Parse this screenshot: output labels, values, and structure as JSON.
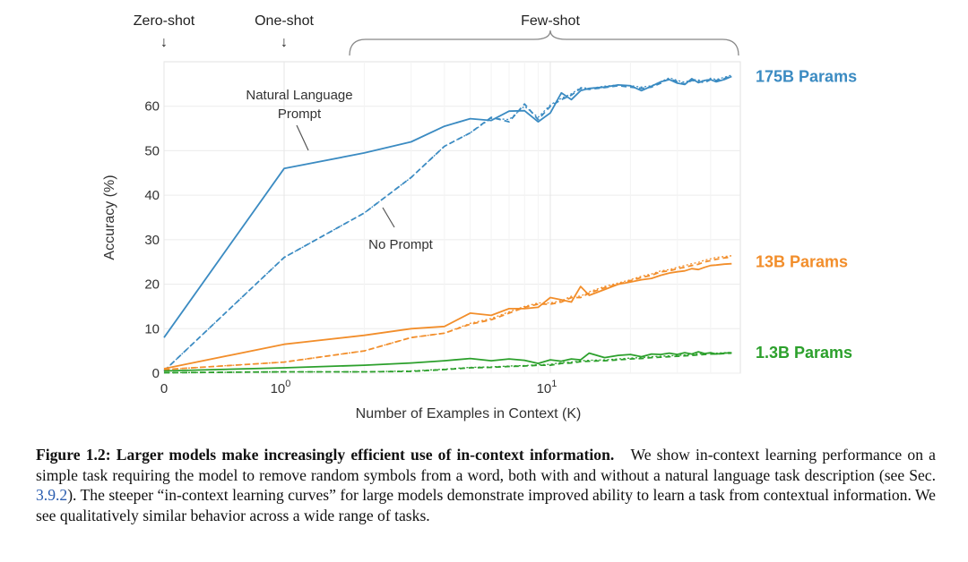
{
  "figure": {
    "shot_labels": {
      "zero_shot": "Zero-shot",
      "one_shot": "One-shot",
      "few_shot": "Few-shot"
    },
    "arrow_glyph": "↓",
    "annotations": {
      "nl_prompt_line1": "Natural Language",
      "nl_prompt_line2": "Prompt",
      "no_prompt": "No Prompt"
    }
  },
  "chart_data": {
    "type": "line",
    "xlabel": "Number of Examples in Context  (K)",
    "ylabel": "Accuracy (%)",
    "x_scale": "symlog",
    "ylim": [
      0,
      70
    ],
    "y_ticks": [
      0,
      10,
      20,
      30,
      40,
      50,
      60
    ],
    "x_ticks": [
      {
        "value": 0,
        "label": "0"
      },
      {
        "value": 1,
        "label": "10",
        "exponent": "0"
      },
      {
        "value": 10,
        "label": "10",
        "exponent": "1"
      }
    ],
    "grid": true,
    "series": [
      {
        "name": "175B Params",
        "prompt": "Natural Language Prompt",
        "style": "solid",
        "color": "#3b8bc2",
        "points": [
          [
            0,
            8
          ],
          [
            1,
            46
          ],
          [
            2,
            49.5
          ],
          [
            3,
            52
          ],
          [
            4,
            55.5
          ],
          [
            5,
            57.2
          ],
          [
            6,
            56.8
          ],
          [
            7,
            58.9
          ],
          [
            8,
            59
          ],
          [
            9,
            56.5
          ],
          [
            10,
            58.5
          ],
          [
            11,
            63
          ],
          [
            12,
            61.5
          ],
          [
            13,
            63.5
          ],
          [
            14,
            64
          ],
          [
            16,
            64.3
          ],
          [
            18,
            64.8
          ],
          [
            20,
            64.6
          ],
          [
            22,
            63.5
          ],
          [
            24,
            64.5
          ],
          [
            26,
            65.5
          ],
          [
            28,
            66
          ],
          [
            30,
            65.2
          ],
          [
            32,
            64.9
          ],
          [
            34,
            66.2
          ],
          [
            36,
            65.3
          ],
          [
            38,
            65.8
          ],
          [
            40,
            66
          ],
          [
            42,
            65.5
          ],
          [
            45,
            66
          ],
          [
            48,
            66.7
          ]
        ]
      },
      {
        "name": "175B Params",
        "prompt": "No Prompt",
        "style": "dashed",
        "color": "#3b8bc2",
        "points": [
          [
            0,
            0.5
          ],
          [
            1,
            26
          ],
          [
            2,
            36
          ],
          [
            3,
            44
          ],
          [
            4,
            51
          ],
          [
            5,
            54
          ],
          [
            6,
            57.5
          ],
          [
            7,
            56.5
          ],
          [
            8,
            60.5
          ],
          [
            9,
            57
          ],
          [
            10,
            60
          ],
          [
            11,
            61.5
          ],
          [
            12,
            62.5
          ],
          [
            13,
            64
          ],
          [
            14,
            63.8
          ],
          [
            16,
            64.2
          ],
          [
            18,
            64.6
          ],
          [
            20,
            64.3
          ],
          [
            22,
            64
          ],
          [
            24,
            64.3
          ],
          [
            26,
            65.2
          ],
          [
            28,
            66.2
          ],
          [
            30,
            65.5
          ],
          [
            32,
            65
          ],
          [
            34,
            65.8
          ],
          [
            36,
            65.6
          ],
          [
            38,
            65.3
          ],
          [
            40,
            66
          ],
          [
            42,
            65.8
          ],
          [
            45,
            66.2
          ],
          [
            48,
            66.8
          ]
        ]
      },
      {
        "name": "175B Params",
        "prompt": "No Prompt (alt)",
        "style": "dotted",
        "color": "#3b8bc2",
        "points": [
          [
            0,
            0.5
          ],
          [
            1,
            26
          ],
          [
            2,
            36
          ],
          [
            3,
            44
          ],
          [
            4,
            51
          ],
          [
            5,
            54
          ],
          [
            6,
            57.3
          ],
          [
            7,
            57
          ],
          [
            8,
            60
          ],
          [
            9,
            57.5
          ],
          [
            10,
            60.3
          ],
          [
            11,
            61.8
          ],
          [
            12,
            62.8
          ],
          [
            13,
            64.2
          ],
          [
            14,
            64
          ],
          [
            16,
            64.5
          ],
          [
            18,
            64.8
          ],
          [
            20,
            64.6
          ],
          [
            22,
            64.3
          ],
          [
            24,
            64.6
          ],
          [
            26,
            65.5
          ],
          [
            28,
            66.4
          ],
          [
            30,
            65.8
          ],
          [
            32,
            65.4
          ],
          [
            34,
            66
          ],
          [
            36,
            65.9
          ],
          [
            38,
            65.7
          ],
          [
            40,
            66.3
          ],
          [
            42,
            66
          ],
          [
            45,
            66.5
          ],
          [
            48,
            67
          ]
        ]
      },
      {
        "name": "13B Params",
        "prompt": "Natural Language Prompt",
        "style": "solid",
        "color": "#f28e2b",
        "points": [
          [
            0,
            1
          ],
          [
            1,
            6.5
          ],
          [
            2,
            8.5
          ],
          [
            3,
            10
          ],
          [
            4,
            10.5
          ],
          [
            5,
            13.5
          ],
          [
            6,
            13
          ],
          [
            7,
            14.5
          ],
          [
            8,
            14.5
          ],
          [
            9,
            14.8
          ],
          [
            10,
            17
          ],
          [
            11,
            16.5
          ],
          [
            12,
            16
          ],
          [
            13,
            19.5
          ],
          [
            14,
            17.5
          ],
          [
            16,
            18.8
          ],
          [
            18,
            20
          ],
          [
            20,
            20.5
          ],
          [
            22,
            21
          ],
          [
            24,
            21.3
          ],
          [
            26,
            22
          ],
          [
            28,
            22.5
          ],
          [
            30,
            22.8
          ],
          [
            32,
            23
          ],
          [
            34,
            23.5
          ],
          [
            36,
            23.3
          ],
          [
            38,
            23.8
          ],
          [
            40,
            24.2
          ],
          [
            42,
            24.3
          ],
          [
            45,
            24.5
          ],
          [
            48,
            24.6
          ]
        ]
      },
      {
        "name": "13B Params",
        "prompt": "No Prompt",
        "style": "dashed",
        "color": "#f28e2b",
        "points": [
          [
            0,
            0.8
          ],
          [
            1,
            2.5
          ],
          [
            2,
            5
          ],
          [
            3,
            8
          ],
          [
            4,
            9
          ],
          [
            5,
            11
          ],
          [
            6,
            12
          ],
          [
            7,
            13.5
          ],
          [
            8,
            14.8
          ],
          [
            9,
            15.5
          ],
          [
            10,
            15.5
          ],
          [
            11,
            16
          ],
          [
            12,
            17
          ],
          [
            13,
            17
          ],
          [
            14,
            18
          ],
          [
            16,
            19.2
          ],
          [
            18,
            20
          ],
          [
            20,
            20.8
          ],
          [
            22,
            21.5
          ],
          [
            24,
            22
          ],
          [
            26,
            22.8
          ],
          [
            28,
            23
          ],
          [
            30,
            23.5
          ],
          [
            32,
            23.8
          ],
          [
            34,
            24.2
          ],
          [
            36,
            24.5
          ],
          [
            38,
            25
          ],
          [
            40,
            25.3
          ],
          [
            42,
            25.6
          ],
          [
            45,
            25.9
          ],
          [
            48,
            26.1
          ]
        ]
      },
      {
        "name": "13B Params",
        "prompt": "No Prompt (alt)",
        "style": "dotted",
        "color": "#f28e2b",
        "points": [
          [
            0,
            0.8
          ],
          [
            1,
            2.5
          ],
          [
            2,
            5
          ],
          [
            3,
            8
          ],
          [
            4,
            9
          ],
          [
            5,
            11.2
          ],
          [
            6,
            12.3
          ],
          [
            7,
            13.8
          ],
          [
            8,
            15
          ],
          [
            9,
            15.8
          ],
          [
            10,
            15.8
          ],
          [
            11,
            16.3
          ],
          [
            12,
            17.3
          ],
          [
            13,
            17.3
          ],
          [
            14,
            18.3
          ],
          [
            16,
            19.5
          ],
          [
            18,
            20.3
          ],
          [
            20,
            21
          ],
          [
            22,
            21.8
          ],
          [
            24,
            22.3
          ],
          [
            26,
            23
          ],
          [
            28,
            23.3
          ],
          [
            30,
            23.8
          ],
          [
            32,
            24.2
          ],
          [
            34,
            24.6
          ],
          [
            36,
            24.9
          ],
          [
            38,
            25.4
          ],
          [
            40,
            25.7
          ],
          [
            42,
            26
          ],
          [
            45,
            26.2
          ],
          [
            48,
            26.4
          ]
        ]
      },
      {
        "name": "1.3B Params",
        "prompt": "Natural Language Prompt",
        "style": "solid",
        "color": "#2ca02c",
        "points": [
          [
            0,
            0.5
          ],
          [
            1,
            1.2
          ],
          [
            2,
            1.8
          ],
          [
            3,
            2.3
          ],
          [
            4,
            2.8
          ],
          [
            5,
            3.3
          ],
          [
            6,
            2.8
          ],
          [
            7,
            3.2
          ],
          [
            8,
            2.9
          ],
          [
            9,
            2.2
          ],
          [
            10,
            3
          ],
          [
            11,
            2.7
          ],
          [
            12,
            3.2
          ],
          [
            13,
            3
          ],
          [
            14,
            4.5
          ],
          [
            16,
            3.5
          ],
          [
            18,
            4
          ],
          [
            20,
            4.2
          ],
          [
            22,
            3.7
          ],
          [
            24,
            4.3
          ],
          [
            26,
            4.2
          ],
          [
            28,
            4.5
          ],
          [
            30,
            4.2
          ],
          [
            32,
            4.6
          ],
          [
            34,
            4.3
          ],
          [
            36,
            4.8
          ],
          [
            38,
            4.4
          ],
          [
            40,
            4.6
          ],
          [
            42,
            4.3
          ],
          [
            45,
            4.5
          ],
          [
            48,
            4.6
          ]
        ]
      },
      {
        "name": "1.3B Params",
        "prompt": "No Prompt",
        "style": "dashed",
        "color": "#2ca02c",
        "points": [
          [
            0,
            0.1
          ],
          [
            1,
            0.3
          ],
          [
            2,
            0.3
          ],
          [
            3,
            0.4
          ],
          [
            4,
            0.8
          ],
          [
            5,
            1.2
          ],
          [
            6,
            1.3
          ],
          [
            7,
            1.5
          ],
          [
            8,
            1.6
          ],
          [
            9,
            1.8
          ],
          [
            10,
            1.8
          ],
          [
            11,
            2.2
          ],
          [
            12,
            2.3
          ],
          [
            13,
            2.6
          ],
          [
            14,
            2.7
          ],
          [
            16,
            2.8
          ],
          [
            18,
            3
          ],
          [
            20,
            3.2
          ],
          [
            22,
            3.3
          ],
          [
            24,
            3.5
          ],
          [
            26,
            3.6
          ],
          [
            28,
            3.7
          ],
          [
            30,
            3.8
          ],
          [
            32,
            3.9
          ],
          [
            34,
            4
          ],
          [
            36,
            4.1
          ],
          [
            38,
            4.2
          ],
          [
            40,
            4.3
          ],
          [
            42,
            4.3
          ],
          [
            45,
            4.4
          ],
          [
            48,
            4.5
          ]
        ]
      },
      {
        "name": "1.3B Params",
        "prompt": "No Prompt (alt)",
        "style": "dotted",
        "color": "#2ca02c",
        "points": [
          [
            0,
            0.1
          ],
          [
            1,
            0.3
          ],
          [
            2,
            0.3
          ],
          [
            3,
            0.5
          ],
          [
            4,
            0.9
          ],
          [
            5,
            1.3
          ],
          [
            6,
            1.4
          ],
          [
            7,
            1.6
          ],
          [
            8,
            1.7
          ],
          [
            9,
            1.9
          ],
          [
            10,
            2
          ],
          [
            11,
            2.4
          ],
          [
            12,
            2.5
          ],
          [
            13,
            2.8
          ],
          [
            14,
            2.9
          ],
          [
            16,
            3
          ],
          [
            18,
            3.2
          ],
          [
            20,
            3.4
          ],
          [
            22,
            3.5
          ],
          [
            24,
            3.7
          ],
          [
            26,
            3.8
          ],
          [
            28,
            3.9
          ],
          [
            30,
            4
          ],
          [
            32,
            4.1
          ],
          [
            34,
            4.2
          ],
          [
            36,
            4.3
          ],
          [
            38,
            4.4
          ],
          [
            40,
            4.5
          ],
          [
            42,
            4.5
          ],
          [
            45,
            4.6
          ],
          [
            48,
            4.7
          ]
        ]
      }
    ],
    "series_labels": [
      {
        "text": "175B Params",
        "color": "#3b8bc2",
        "at_y": 66.7
      },
      {
        "text": "13B Params",
        "color": "#f28e2b",
        "at_y": 25
      },
      {
        "text": "1.3B Params",
        "color": "#2ca02c",
        "at_y": 4.6
      }
    ]
  },
  "caption": {
    "figure_number": "Figure 1.2:",
    "bold_title": "Larger models make increasingly efficient use of in-context information.",
    "text_part1": "We show in-context learning performance on a simple task requiring the model to remove random symbols from a word, both with and without a natural language task description (see Sec. ",
    "section_link": "3.9.2",
    "text_part2": "). The steeper “in-context learning curves” for large models demonstrate improved ability to learn a task from contextual information. We see qualitatively similar behavior across a wide range of tasks."
  }
}
